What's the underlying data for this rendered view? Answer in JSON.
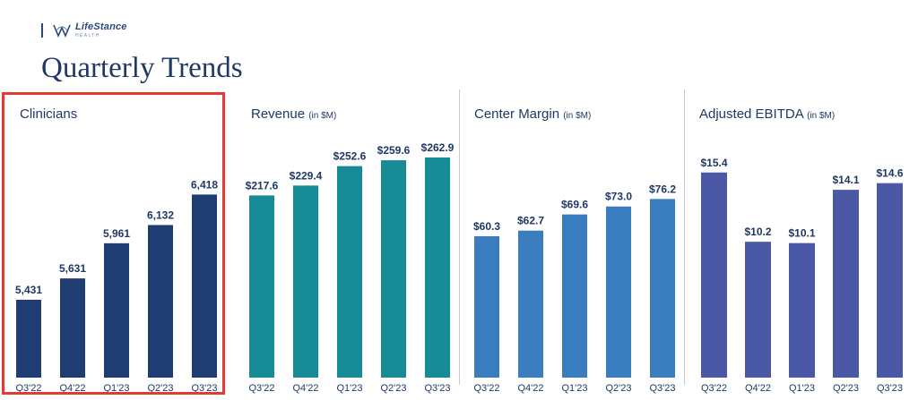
{
  "header": {
    "logo_name": "LifeStance",
    "logo_sub": "HEALTH",
    "title": "Quarterly Trends"
  },
  "colors": {
    "clinicians": "#1f3d73",
    "revenue": "#168b96",
    "center_margin": "#3a7ebf",
    "adjusted_ebitda": "#4a58a6",
    "highlight": "#e53935"
  },
  "chart_data": [
    {
      "id": "clinicians",
      "type": "bar",
      "title": "Clinicians",
      "unit": "",
      "categories": [
        "Q3'22",
        "Q4'22",
        "Q1'23",
        "Q2'23",
        "Q3'23"
      ],
      "values": [
        5431,
        5631,
        5961,
        6132,
        6418
      ],
      "labels": [
        "5,431",
        "5,631",
        "5,961",
        "6,132",
        "6,418"
      ],
      "ylim": [
        4700,
        6900
      ]
    },
    {
      "id": "revenue",
      "type": "bar",
      "title": "Revenue",
      "unit": "(in $M)",
      "categories": [
        "Q3'22",
        "Q4'22",
        "Q1'23",
        "Q2'23",
        "Q3'23"
      ],
      "values": [
        217.6,
        229.4,
        252.6,
        259.6,
        262.9
      ],
      "labels": [
        "$217.6",
        "$229.4",
        "$252.6",
        "$259.6",
        "$262.9"
      ],
      "ylim": [
        0,
        280
      ]
    },
    {
      "id": "center_margin",
      "type": "bar",
      "title": "Center Margin",
      "unit": "(in $M)",
      "categories": [
        "Q3'22",
        "Q4'22",
        "Q1'23",
        "Q2'23",
        "Q3'23"
      ],
      "values": [
        60.3,
        62.7,
        69.6,
        73.0,
        76.2
      ],
      "labels": [
        "$60.3",
        "$62.7",
        "$69.6",
        "$73.0",
        "$76.2"
      ],
      "ylim": [
        0,
        100
      ]
    },
    {
      "id": "adjusted_ebitda",
      "type": "bar",
      "title": "Adjusted EBITDA",
      "unit": "(in $M)",
      "categories": [
        "Q3'22",
        "Q4'22",
        "Q1'23",
        "Q2'23",
        "Q3'23"
      ],
      "values": [
        15.4,
        10.2,
        10.1,
        14.1,
        14.6
      ],
      "labels": [
        "$15.4",
        "$10.2",
        "$10.1",
        "$14.1",
        "$14.6"
      ],
      "ylim": [
        0,
        17.6
      ]
    }
  ]
}
